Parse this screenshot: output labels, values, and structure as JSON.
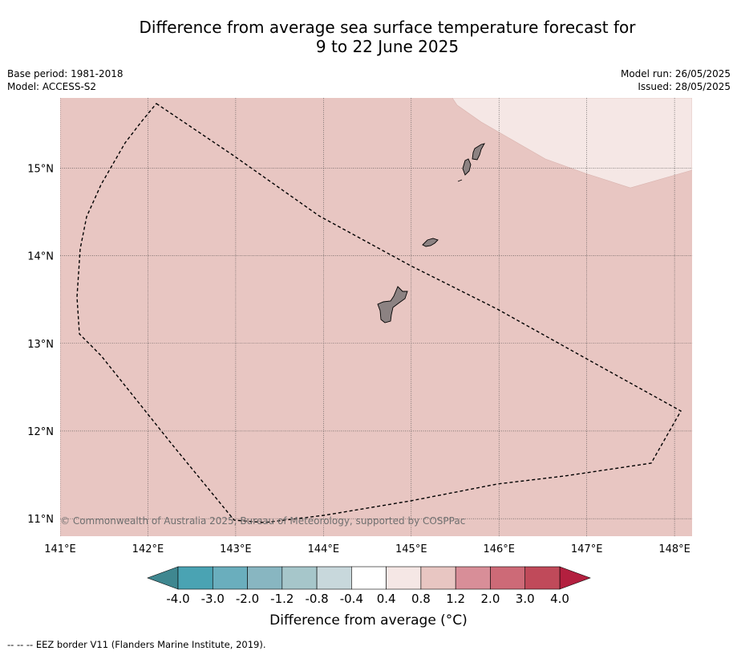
{
  "title_line1": "Difference from average sea surface temperature forecast for",
  "title_line2": "9 to 22 June 2025",
  "meta": {
    "base_period": "Base period: 1981-2018",
    "model": "Model: ACCESS-S2",
    "model_run": "Model run: 26/05/2025",
    "issued": "Issued: 28/05/2025"
  },
  "map": {
    "lon_range": [
      141,
      148.2
    ],
    "lat_range": [
      10.8,
      15.8
    ],
    "lon_labels": [
      "141°E",
      "142°E",
      "143°E",
      "144°E",
      "145°E",
      "146°E",
      "147°E",
      "148°E"
    ],
    "lat_labels": [
      "11°N",
      "12°N",
      "13°N",
      "14°N",
      "15°N"
    ],
    "background_color": "#e8c6c2",
    "cooler_region_color": "#f5e7e5",
    "land_color": "#8c8282",
    "copyright": "© Commonwealth of Australia 2025, Bureau of Meteorology, supported by COSPPac"
  },
  "colorbar": {
    "tick_labels": [
      "-4.0",
      "-3.0",
      "-2.0",
      "-1.2",
      "-0.8",
      "-0.4",
      "0.4",
      "0.8",
      "1.2",
      "2.0",
      "3.0",
      "4.0"
    ],
    "colors": [
      "#4aa3b3",
      "#6aaebd",
      "#88b6c1",
      "#a6c6ca",
      "#c8d8dc",
      "#ffffff",
      "#f5e7e5",
      "#e8c6c2",
      "#d88e98",
      "#cd6a77",
      "#c04a5a"
    ],
    "under_color": "#3f8790",
    "over_color": "#b3203f",
    "label": "Difference from average (°C)"
  },
  "footnote": "--  --  -- EEZ border V11 (Flanders Marine Institute, 2019)."
}
